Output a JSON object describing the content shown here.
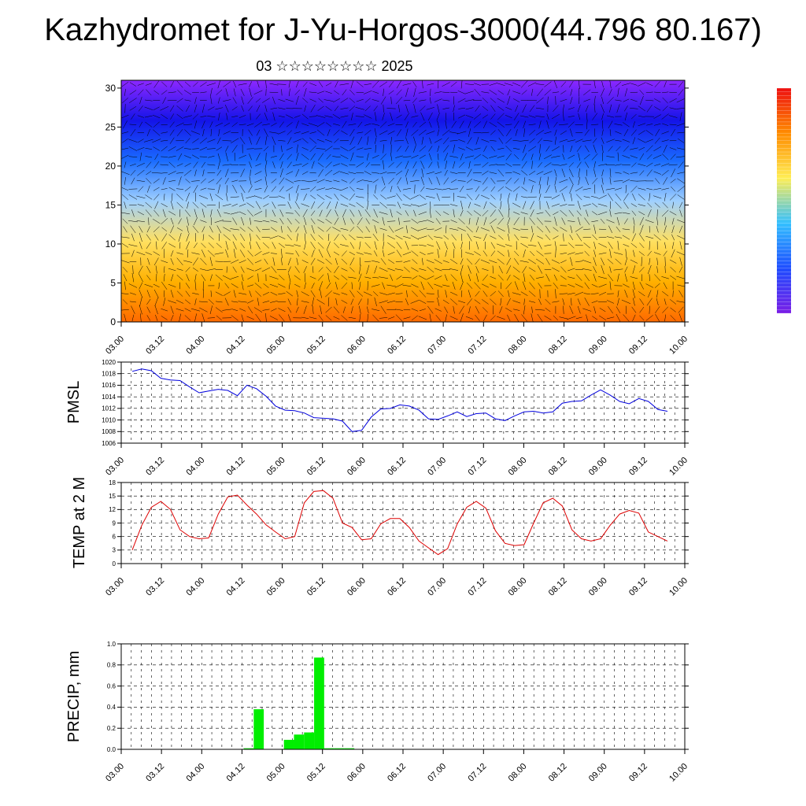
{
  "title": "Kazhydromet for J-Yu-Horgos-3000(44.796 80.167)",
  "subtitle": "03 ☆☆☆☆☆☆☆☆ 2025",
  "colors": {
    "pmsl_line": "#0000dd",
    "temp_line": "#dd0000",
    "precip_bar": "#00ee00",
    "barb": "#000000"
  },
  "chart_data": [
    {
      "type": "heatmap",
      "name": "upper",
      "ylim": [
        0,
        31
      ],
      "yticks": [
        0,
        5,
        10,
        15,
        20,
        25,
        30
      ],
      "xticks": [
        "03.00",
        "03.12",
        "04.00",
        "04.12",
        "05.00",
        "05.12",
        "06.00",
        "06.12",
        "07.00",
        "07.12",
        "08.00",
        "08.12",
        "09.00",
        "09.12",
        "10.00"
      ],
      "color_bands_from_bottom": [
        "#ff6a00",
        "#ffb000",
        "#ffe060",
        "#9fd0ff",
        "#1a6cff",
        "#1414e8",
        "#8c28ff"
      ],
      "colorbar": [
        "#ee1010",
        "#ff8c00",
        "#ffee55",
        "#33c0ff",
        "#1e4dff",
        "#7a1ee6"
      ],
      "overlay": "wind-barbs"
    },
    {
      "type": "line",
      "ylabel": "PMSL",
      "ylim": [
        1006,
        1020
      ],
      "yticks": [
        1006,
        1008,
        1010,
        1012,
        1014,
        1016,
        1018,
        1020
      ],
      "xticks": [
        "03.00",
        "03.12",
        "04.00",
        "04.12",
        "05.00",
        "05.12",
        "06.00",
        "06.12",
        "07.00",
        "07.12",
        "08.00",
        "08.12",
        "09.00",
        "09.12",
        "10.00"
      ],
      "x": [
        0,
        3,
        6,
        9,
        12,
        15,
        18,
        21,
        24,
        27,
        30,
        33,
        36,
        39,
        42,
        45,
        48,
        51,
        54,
        57,
        60,
        63,
        66,
        69,
        72,
        75,
        78,
        81,
        84,
        87,
        90,
        93,
        96,
        99,
        102,
        105,
        108,
        111,
        114,
        117,
        120,
        123,
        126,
        129,
        132,
        135,
        138,
        141,
        144,
        147,
        150,
        153,
        156,
        159,
        162,
        165,
        168
      ],
      "values": [
        1018.4,
        1018.8,
        1018.5,
        1017.2,
        1016.9,
        1016.8,
        1015.7,
        1014.7,
        1015.0,
        1015.3,
        1015.1,
        1014.2,
        1016.0,
        1015.4,
        1014.1,
        1012.4,
        1011.7,
        1011.6,
        1011.2,
        1010.4,
        1010.3,
        1010.2,
        1009.8,
        1008.0,
        1008.2,
        1010.5,
        1011.9,
        1012.0,
        1012.6,
        1012.4,
        1011.7,
        1010.2,
        1010.1,
        1010.7,
        1011.4,
        1010.6,
        1011.1,
        1011.2,
        1010.2,
        1009.9,
        1010.7,
        1011.4,
        1011.5,
        1011.2,
        1011.4,
        1012.9,
        1013.2,
        1013.3,
        1014.3,
        1015.2,
        1014.3,
        1013.2,
        1012.8,
        1013.7,
        1013.2,
        1011.8,
        1011.5
      ]
    },
    {
      "type": "line",
      "ylabel": "TEMP at 2 M",
      "ylim": [
        0,
        18
      ],
      "yticks": [
        0,
        3,
        6,
        9,
        12,
        15,
        18
      ],
      "xticks": [
        "03.00",
        "03.12",
        "04.00",
        "04.12",
        "05.00",
        "05.12",
        "06.00",
        "06.12",
        "07.00",
        "07.12",
        "08.00",
        "08.12",
        "09.00",
        "09.12",
        "10.00"
      ],
      "x": [
        0,
        3,
        6,
        9,
        12,
        15,
        18,
        21,
        24,
        27,
        30,
        33,
        36,
        39,
        42,
        45,
        48,
        51,
        54,
        57,
        60,
        63,
        66,
        69,
        72,
        75,
        78,
        81,
        84,
        87,
        90,
        93,
        96,
        99,
        102,
        105,
        108,
        111,
        114,
        117,
        120,
        123,
        126,
        129,
        132,
        135,
        138,
        141,
        144,
        147,
        150,
        153,
        156,
        159,
        162,
        165,
        168
      ],
      "values": [
        3.0,
        8.5,
        12.5,
        13.8,
        12.0,
        7.5,
        6.0,
        5.5,
        5.7,
        11.0,
        14.8,
        15.2,
        13.0,
        11.0,
        8.6,
        7.0,
        5.5,
        6.0,
        13.5,
        16.0,
        16.2,
        14.5,
        9.0,
        8.0,
        5.3,
        5.5,
        8.8,
        10.0,
        10.0,
        8.0,
        5.0,
        3.5,
        2.0,
        3.3,
        8.8,
        12.5,
        13.8,
        12.3,
        7.3,
        4.5,
        4.0,
        4.2,
        9.0,
        13.5,
        14.5,
        12.8,
        7.5,
        5.5,
        5.0,
        5.5,
        8.5,
        11.0,
        11.8,
        11.2,
        7.0,
        6.0,
        5.0
      ]
    },
    {
      "type": "bar",
      "ylabel": "PRECIP, mm",
      "ylim": [
        0,
        1.0
      ],
      "yticks": [
        "0.0",
        "0.2",
        "0.4",
        "0.6",
        "0.8",
        "1.0"
      ],
      "xticks": [
        "03.00",
        "03.12",
        "04.00",
        "04.12",
        "05.00",
        "05.12",
        "06.00",
        "06.12",
        "07.00",
        "07.12",
        "08.00",
        "08.12",
        "09.00",
        "09.12",
        "10.00"
      ],
      "x": [
        33,
        36,
        45,
        48,
        51,
        54,
        57,
        60,
        63
      ],
      "values": [
        0.01,
        0.38,
        0.09,
        0.14,
        0.16,
        0.87,
        0.01,
        0.01,
        0.01
      ],
      "xstart_offset": 3,
      "xend": 171
    }
  ]
}
